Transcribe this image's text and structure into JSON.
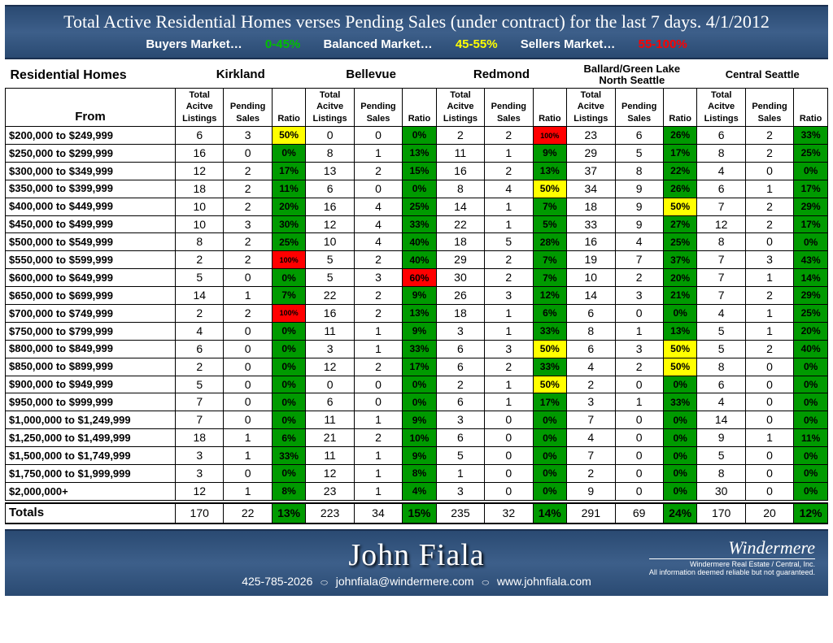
{
  "title": "Total Active Residential Homes verses Pending Sales (under contract) for the last 7 days. 4/1/2012",
  "legend": {
    "buyers": "Buyers Market…",
    "buyers_range": "0-45%",
    "balanced": "Balanced Market…",
    "balanced_range": "45-55%",
    "sellers": "Sellers Market…",
    "sellers_range": "55-100%"
  },
  "section_label": "Residential Homes",
  "from_label": "From",
  "col_labels": {
    "active": "Total Acitve Listings",
    "pending": "Pending Sales",
    "ratio": "Ratio"
  },
  "regions": [
    "Kirkland",
    "Bellevue",
    "Redmond",
    "Ballard/Green Lake North Seattle",
    "Central Seattle"
  ],
  "colors": {
    "green": "#009a00",
    "yellow": "#ffff00",
    "red": "#ff0000",
    "green_text": "#000",
    "yellow_text": "#000",
    "red_text": "#000"
  },
  "rows": [
    {
      "label": "$200,000 to $249,999",
      "cells": [
        [
          6,
          3,
          "50%",
          "y"
        ],
        [
          0,
          0,
          "0%",
          "g"
        ],
        [
          2,
          2,
          "100%",
          "r"
        ],
        [
          23,
          6,
          "26%",
          "g"
        ],
        [
          6,
          2,
          "33%",
          "g"
        ]
      ]
    },
    {
      "label": "$250,000 to $299,999",
      "cells": [
        [
          16,
          0,
          "0%",
          "g"
        ],
        [
          8,
          1,
          "13%",
          "g"
        ],
        [
          11,
          1,
          "9%",
          "g"
        ],
        [
          29,
          5,
          "17%",
          "g"
        ],
        [
          8,
          2,
          "25%",
          "g"
        ]
      ]
    },
    {
      "label": "$300,000 to $349,999",
      "cells": [
        [
          12,
          2,
          "17%",
          "g"
        ],
        [
          13,
          2,
          "15%",
          "g"
        ],
        [
          16,
          2,
          "13%",
          "g"
        ],
        [
          37,
          8,
          "22%",
          "g"
        ],
        [
          4,
          0,
          "0%",
          "g"
        ]
      ]
    },
    {
      "label": "$350,000 to $399,999",
      "cells": [
        [
          18,
          2,
          "11%",
          "g"
        ],
        [
          6,
          0,
          "0%",
          "g"
        ],
        [
          8,
          4,
          "50%",
          "y"
        ],
        [
          34,
          9,
          "26%",
          "g"
        ],
        [
          6,
          1,
          "17%",
          "g"
        ]
      ]
    },
    {
      "label": "$400,000 to $449,999",
      "cells": [
        [
          10,
          2,
          "20%",
          "g"
        ],
        [
          16,
          4,
          "25%",
          "g"
        ],
        [
          14,
          1,
          "7%",
          "g"
        ],
        [
          18,
          9,
          "50%",
          "y"
        ],
        [
          7,
          2,
          "29%",
          "g"
        ]
      ]
    },
    {
      "label": "$450,000 to $499,999",
      "cells": [
        [
          10,
          3,
          "30%",
          "g"
        ],
        [
          12,
          4,
          "33%",
          "g"
        ],
        [
          22,
          1,
          "5%",
          "g"
        ],
        [
          33,
          9,
          "27%",
          "g"
        ],
        [
          12,
          2,
          "17%",
          "g"
        ]
      ]
    },
    {
      "label": "$500,000 to $549,999",
      "cells": [
        [
          8,
          2,
          "25%",
          "g"
        ],
        [
          10,
          4,
          "40%",
          "g"
        ],
        [
          18,
          5,
          "28%",
          "g"
        ],
        [
          16,
          4,
          "25%",
          "g"
        ],
        [
          8,
          0,
          "0%",
          "g"
        ]
      ]
    },
    {
      "label": "$550,000 to $599,999",
      "cells": [
        [
          2,
          2,
          "100%",
          "r"
        ],
        [
          5,
          2,
          "40%",
          "g"
        ],
        [
          29,
          2,
          "7%",
          "g"
        ],
        [
          19,
          7,
          "37%",
          "g"
        ],
        [
          7,
          3,
          "43%",
          "g"
        ]
      ]
    },
    {
      "label": "$600,000 to $649,999",
      "cells": [
        [
          5,
          0,
          "0%",
          "g"
        ],
        [
          5,
          3,
          "60%",
          "r"
        ],
        [
          30,
          2,
          "7%",
          "g"
        ],
        [
          10,
          2,
          "20%",
          "g"
        ],
        [
          7,
          1,
          "14%",
          "g"
        ]
      ]
    },
    {
      "label": "$650,000 to $699,999",
      "cells": [
        [
          14,
          1,
          "7%",
          "g"
        ],
        [
          22,
          2,
          "9%",
          "g"
        ],
        [
          26,
          3,
          "12%",
          "g"
        ],
        [
          14,
          3,
          "21%",
          "g"
        ],
        [
          7,
          2,
          "29%",
          "g"
        ]
      ]
    },
    {
      "label": "$700,000 to $749,999",
      "cells": [
        [
          2,
          2,
          "100%",
          "r"
        ],
        [
          16,
          2,
          "13%",
          "g"
        ],
        [
          18,
          1,
          "6%",
          "g"
        ],
        [
          6,
          0,
          "0%",
          "g"
        ],
        [
          4,
          1,
          "25%",
          "g"
        ]
      ]
    },
    {
      "label": "$750,000 to $799,999",
      "cells": [
        [
          4,
          0,
          "0%",
          "g"
        ],
        [
          11,
          1,
          "9%",
          "g"
        ],
        [
          3,
          1,
          "33%",
          "g"
        ],
        [
          8,
          1,
          "13%",
          "g"
        ],
        [
          5,
          1,
          "20%",
          "g"
        ]
      ]
    },
    {
      "label": "$800,000 to $849,999",
      "cells": [
        [
          6,
          0,
          "0%",
          "g"
        ],
        [
          3,
          1,
          "33%",
          "g"
        ],
        [
          6,
          3,
          "50%",
          "y"
        ],
        [
          6,
          3,
          "50%",
          "y"
        ],
        [
          5,
          2,
          "40%",
          "g"
        ]
      ]
    },
    {
      "label": "$850,000 to $899,999",
      "cells": [
        [
          2,
          0,
          "0%",
          "g"
        ],
        [
          12,
          2,
          "17%",
          "g"
        ],
        [
          6,
          2,
          "33%",
          "g"
        ],
        [
          4,
          2,
          "50%",
          "y"
        ],
        [
          8,
          0,
          "0%",
          "g"
        ]
      ]
    },
    {
      "label": "$900,000 to $949,999",
      "cells": [
        [
          5,
          0,
          "0%",
          "g"
        ],
        [
          0,
          0,
          "0%",
          "g"
        ],
        [
          2,
          1,
          "50%",
          "y"
        ],
        [
          2,
          0,
          "0%",
          "g"
        ],
        [
          6,
          0,
          "0%",
          "g"
        ]
      ]
    },
    {
      "label": "$950,000 to $999,999",
      "cells": [
        [
          7,
          0,
          "0%",
          "g"
        ],
        [
          6,
          0,
          "0%",
          "g"
        ],
        [
          6,
          1,
          "17%",
          "g"
        ],
        [
          3,
          1,
          "33%",
          "g"
        ],
        [
          4,
          0,
          "0%",
          "g"
        ]
      ]
    },
    {
      "label": "$1,000,000 to $1,249,999",
      "cells": [
        [
          7,
          0,
          "0%",
          "g"
        ],
        [
          11,
          1,
          "9%",
          "g"
        ],
        [
          3,
          0,
          "0%",
          "g"
        ],
        [
          7,
          0,
          "0%",
          "g"
        ],
        [
          14,
          0,
          "0%",
          "g"
        ]
      ]
    },
    {
      "label": "$1,250,000 to $1,499,999",
      "cells": [
        [
          18,
          1,
          "6%",
          "g"
        ],
        [
          21,
          2,
          "10%",
          "g"
        ],
        [
          6,
          0,
          "0%",
          "g"
        ],
        [
          4,
          0,
          "0%",
          "g"
        ],
        [
          9,
          1,
          "11%",
          "g"
        ]
      ]
    },
    {
      "label": "$1,500,000 to $1,749,999",
      "cells": [
        [
          3,
          1,
          "33%",
          "g"
        ],
        [
          11,
          1,
          "9%",
          "g"
        ],
        [
          5,
          0,
          "0%",
          "g"
        ],
        [
          7,
          0,
          "0%",
          "g"
        ],
        [
          5,
          0,
          "0%",
          "g"
        ]
      ]
    },
    {
      "label": "$1,750,000 to $1,999,999",
      "cells": [
        [
          3,
          0,
          "0%",
          "g"
        ],
        [
          12,
          1,
          "8%",
          "g"
        ],
        [
          1,
          0,
          "0%",
          "g"
        ],
        [
          2,
          0,
          "0%",
          "g"
        ],
        [
          8,
          0,
          "0%",
          "g"
        ]
      ]
    },
    {
      "label": "$2,000,000+",
      "cells": [
        [
          12,
          1,
          "8%",
          "g"
        ],
        [
          23,
          1,
          "4%",
          "g"
        ],
        [
          3,
          0,
          "0%",
          "g"
        ],
        [
          9,
          0,
          "0%",
          "g"
        ],
        [
          30,
          0,
          "0%",
          "g"
        ]
      ]
    }
  ],
  "totals": {
    "label": "Totals",
    "cells": [
      [
        170,
        22,
        "13%",
        "g"
      ],
      [
        223,
        34,
        "15%",
        "g"
      ],
      [
        235,
        32,
        "14%",
        "g"
      ],
      [
        291,
        69,
        "24%",
        "g"
      ],
      [
        170,
        20,
        "12%",
        "g"
      ]
    ]
  },
  "footer": {
    "name": "John Fiala",
    "phone": "425-785-2026",
    "email": "johnfiala@windermere.com",
    "web": "www.johnfiala.com",
    "brand": "Windermere",
    "brand_sub": "Windermere Real Estate / Central, Inc.",
    "disclaimer": "All information deemed reliable but not guaranteed."
  }
}
